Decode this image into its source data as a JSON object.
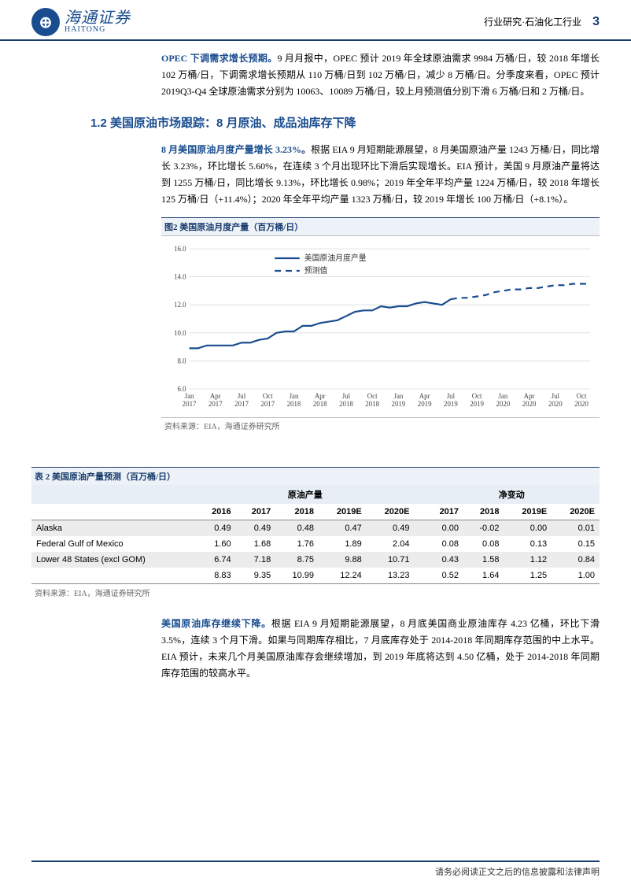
{
  "header": {
    "brand_cn": "海通证券",
    "brand_en": "HAITONG",
    "category": "行业研究·石油化工行业",
    "page_num": "3"
  },
  "paragraphs": {
    "p1_lead": "OPEC 下调需求增长预期。",
    "p1_rest": "9 月月报中，OPEC 预计 2019 年全球原油需求 9984 万桶/日，较 2018 年增长 102 万桶/日，下调需求增长预期从 110 万桶/日到 102 万桶/日，减少 8 万桶/日。分季度来看，OPEC 预计 2019Q3-Q4 全球原油需求分别为 10063、10089 万桶/日，较上月预测值分别下滑 6 万桶/日和 2 万桶/日。",
    "section_title": "1.2 美国原油市场跟踪：8 月原油、成品油库存下降",
    "p2_lead": "8 月美国原油月度产量增长 3.23%。",
    "p2_rest": "根据 EIA 9 月短期能源展望，8 月美国原油产量 1243 万桶/日，同比增长 3.23%，环比增长 5.60%，在连续 3 个月出现环比下滑后实现增长。EIA 预计，美国 9 月原油产量将达到 1255 万桶/日，同比增长 9.13%，环比增长 0.98%；2019 年全年平均产量 1224 万桶/日，较 2018 年增长 125 万桶/日（+11.4%）；2020 年全年平均产量 1323 万桶/日，较 2019 年增长 100 万桶/日（+8.1%）。",
    "p3_lead": "美国原油库存继续下降。",
    "p3_rest": "根据 EIA 9 月短期能源展望，8 月底美国商业原油库存 4.23 亿桶，环比下滑 3.5%，连续 3 个月下滑。如果与同期库存相比，7 月底库存处于 2014-2018 年同期库存范围的中上水平。EIA 预计，未来几个月美国原油库存会继续增加，到 2019 年底将达到 4.50 亿桶，处于 2014-2018 年同期库存范围的较高水平。"
  },
  "chart": {
    "title": "图2  美国原油月度产量（百万桶/日）",
    "legend_actual": "美国原油月度产量",
    "legend_forecast": "预测值",
    "y_ticks": [
      6.0,
      8.0,
      10.0,
      12.0,
      14.0,
      16.0
    ],
    "ylim": [
      6.0,
      16.0
    ],
    "x_labels": [
      "Jan 2017",
      "Apr 2017",
      "Jul 2017",
      "Oct 2017",
      "Jan 2018",
      "Apr 2018",
      "Jul 2018",
      "Oct 2018",
      "Jan 2019",
      "Apr 2019",
      "Jul 2019",
      "Oct 2019",
      "Jan 2020",
      "Apr 2020",
      "Jul 2020",
      "Oct 2020"
    ],
    "actual": [
      8.9,
      8.9,
      9.1,
      9.1,
      9.1,
      9.1,
      9.3,
      9.3,
      9.5,
      9.6,
      10.0,
      10.1,
      10.1,
      10.5,
      10.5,
      10.7,
      10.8,
      10.9,
      11.2,
      11.5,
      11.6,
      11.6,
      11.9,
      11.8,
      11.9,
      11.9,
      12.1,
      12.2,
      12.1,
      12.0,
      12.4
    ],
    "forecast": [
      12.4,
      12.5,
      12.5,
      12.6,
      12.7,
      12.9,
      13.0,
      13.1,
      13.1,
      13.2,
      13.2,
      13.3,
      13.4,
      13.4,
      13.5,
      13.5,
      13.5
    ],
    "line_color": "#1a4d8f",
    "forecast_color": "#1a4d8f",
    "grid_color": "#cccccc",
    "bg_color": "#ffffff",
    "line_width": 2.2,
    "dash_pattern": "8,6",
    "font_size_axis": 9,
    "font_size_legend": 10,
    "source": "资料来源：EIA，海通证券研究所"
  },
  "table": {
    "title": "表 2  美国原油产量预测（百万桶/日）",
    "group_headers": [
      "",
      "原油产量",
      "净变动"
    ],
    "year_headers_left": [
      "2016",
      "2017",
      "2018",
      "2019E",
      "2020E"
    ],
    "year_headers_right": [
      "2017",
      "2018",
      "2019E",
      "2020E"
    ],
    "rows": [
      {
        "label": "Alaska",
        "l": [
          "0.49",
          "0.49",
          "0.48",
          "0.47",
          "0.49"
        ],
        "r": [
          "0.00",
          "-0.02",
          "0.00",
          "0.01"
        ]
      },
      {
        "label": "Federal Gulf of Mexico",
        "l": [
          "1.60",
          "1.68",
          "1.76",
          "1.89",
          "2.04"
        ],
        "r": [
          "0.08",
          "0.08",
          "0.13",
          "0.15"
        ]
      },
      {
        "label": "Lower 48 States (excl GOM)",
        "l": [
          "6.74",
          "7.18",
          "8.75",
          "9.88",
          "10.71"
        ],
        "r": [
          "0.43",
          "1.58",
          "1.12",
          "0.84"
        ]
      },
      {
        "label": "",
        "l": [
          "8.83",
          "9.35",
          "10.99",
          "12.24",
          "13.23"
        ],
        "r": [
          "0.52",
          "1.64",
          "1.25",
          "1.00"
        ]
      }
    ],
    "stripe_odd_bg": "#ececec",
    "header_bg": "#e8eef5",
    "source": "资料来源：EIA，海通证券研究所"
  },
  "footer": {
    "text": "请务必阅读正文之后的信息披露和法律声明"
  }
}
